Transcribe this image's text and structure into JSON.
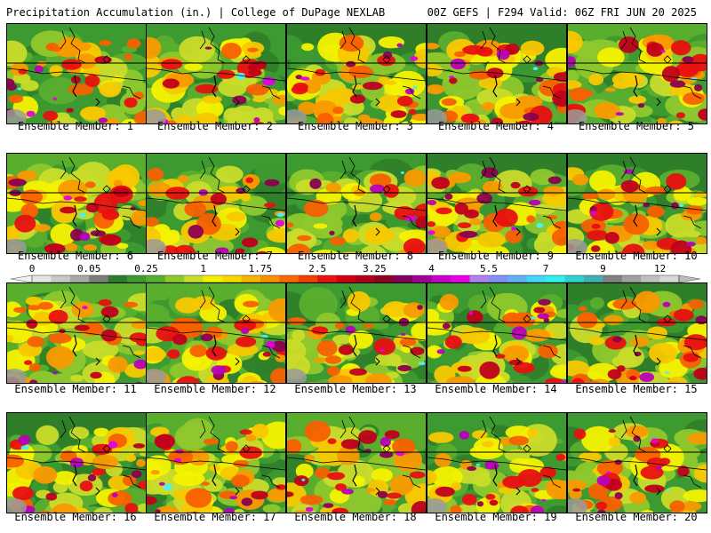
{
  "header": {
    "title_left": "Precipitation Accumulation (in.) | College of DuPage NEXLAB",
    "title_right": "00Z GEFS | F294 Valid: 06Z FRI JUN 20 2025"
  },
  "member_label_prefix": "Ensemble Member:",
  "members": [
    "1",
    "2",
    "3",
    "4",
    "5",
    "6",
    "7",
    "8",
    "9",
    "10",
    "11",
    "12",
    "13",
    "14",
    "15",
    "16",
    "17",
    "18",
    "19",
    "20"
  ],
  "legend": {
    "tick_labels": [
      "0",
      "0.05",
      "0.25",
      "1",
      "1.75",
      "2.5",
      "3.25",
      "4",
      "5.5",
      "7",
      "9",
      "12"
    ],
    "tick_bin_index": [
      0,
      3,
      6,
      9,
      12,
      15,
      18,
      21,
      24,
      27,
      30,
      33
    ],
    "colors": [
      "#e4e4e4",
      "#c8c8c8",
      "#a8a8a8",
      "#7c7c7c",
      "#2e7b2e",
      "#3c9a30",
      "#56b02e",
      "#8ec82c",
      "#c8dc2c",
      "#f0f000",
      "#f8d800",
      "#f8b400",
      "#f89000",
      "#f86800",
      "#f04000",
      "#e81010",
      "#d00010",
      "#b00018",
      "#900020",
      "#800060",
      "#a00098",
      "#c800c8",
      "#e800e8",
      "#b080f0",
      "#8090f8",
      "#60b0f8",
      "#40d8f8",
      "#30f0f0",
      "#30d0d0",
      "#40b0b0",
      "#808080",
      "#a0a0a0",
      "#c0c0c0",
      "#d8d8d8"
    ]
  },
  "map_palette": [
    "#2f7f2a",
    "#3c9a30",
    "#5aae2e",
    "#8ec82c",
    "#cadc2a",
    "#f6f200",
    "#f8c800",
    "#f89a00",
    "#f86000",
    "#e81010",
    "#c0001c",
    "#8c0050",
    "#b800b8",
    "#e000e0",
    "#4ef0f0"
  ]
}
